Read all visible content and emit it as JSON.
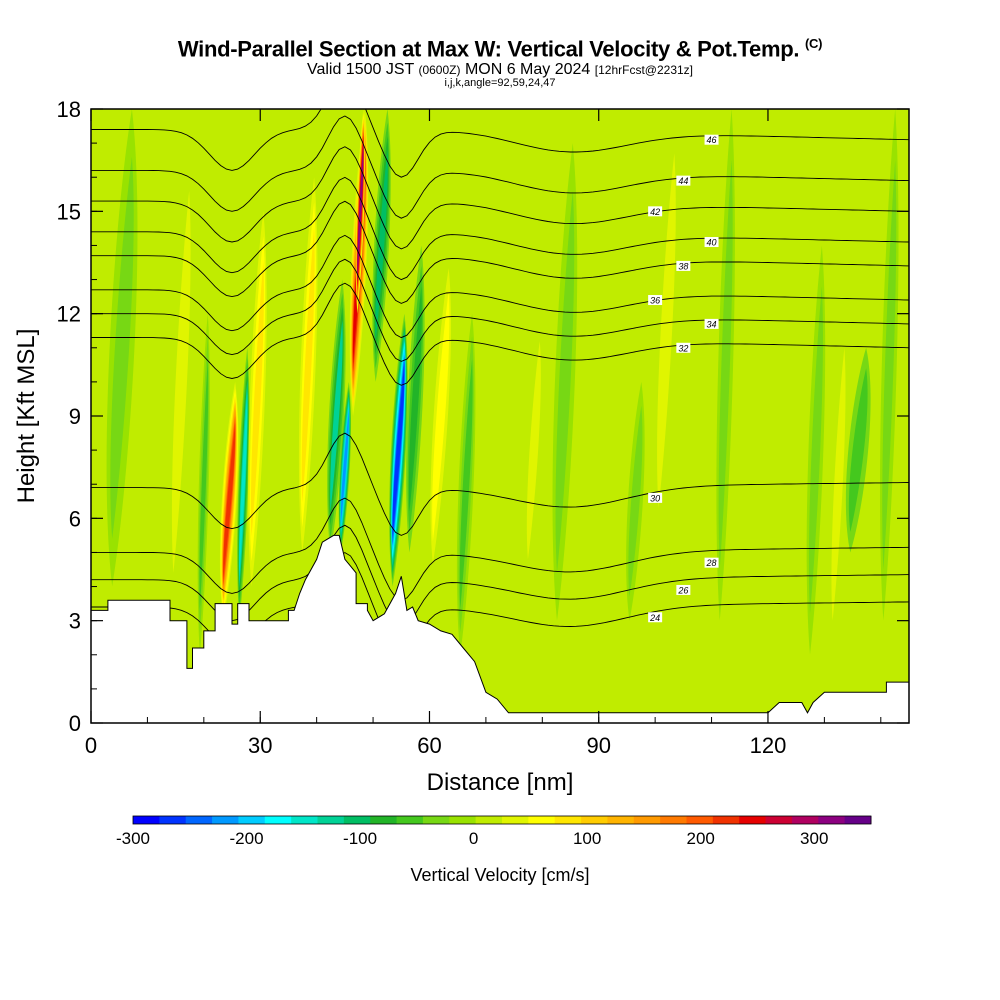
{
  "title": {
    "main": "Wind-Parallel Section at Max W: Vertical Velocity & Pot.Temp.",
    "copyright": "(C)",
    "valid": "Valid 1500 JST",
    "valid_z": "(0600Z)",
    "date": "MON 6 May 2024",
    "forecast": "[12hrFcst@2231z]",
    "indices": "i,j,k,angle=92,59,24,47"
  },
  "chart_data": {
    "type": "heatmap",
    "xlabel": "Distance [nm]",
    "ylabel": "Height [Kft MSL]",
    "xlim": [
      0,
      145
    ],
    "ylim": [
      0,
      18
    ],
    "xticks": [
      0,
      30,
      60,
      90,
      120
    ],
    "yticks": [
      0,
      3,
      6,
      9,
      12,
      15,
      18
    ],
    "colorbar": {
      "label": "Vertical Velocity [cm/s]",
      "ticks": [
        -300,
        -200,
        -100,
        0,
        100,
        200,
        300
      ],
      "range": [
        -300,
        350
      ],
      "colors": [
        "#0000ff",
        "#0033ff",
        "#0066ff",
        "#0099ff",
        "#00ccff",
        "#00ffff",
        "#00e6c8",
        "#00d296",
        "#00be64",
        "#22b428",
        "#44c81e",
        "#77d814",
        "#99e200",
        "#c0ec00",
        "#e0f500",
        "#ffff00",
        "#ffe600",
        "#ffcc00",
        "#ffb400",
        "#ff9a00",
        "#ff7a00",
        "#ff5a00",
        "#f03200",
        "#e60000",
        "#cc0033",
        "#b00060",
        "#8c0080",
        "#660088"
      ]
    },
    "vertical_velocity_cells": [
      {
        "x": [
          3,
          8
        ],
        "y": [
          4,
          18
        ],
        "w": -40
      },
      {
        "x": [
          14,
          18
        ],
        "y": [
          3,
          17
        ],
        "w": 45
      },
      {
        "x": [
          19,
          21
        ],
        "y": [
          2,
          12
        ],
        "w": -60
      },
      {
        "x": [
          23,
          26
        ],
        "y": [
          3,
          10
        ],
        "w": 220
      },
      {
        "x": [
          26,
          28
        ],
        "y": [
          3,
          11
        ],
        "w": -150
      },
      {
        "x": [
          28,
          31
        ],
        "y": [
          4,
          15
        ],
        "w": 90
      },
      {
        "x": [
          37,
          40
        ],
        "y": [
          5,
          16
        ],
        "w": 80
      },
      {
        "x": [
          42,
          45
        ],
        "y": [
          5,
          13
        ],
        "w": -120
      },
      {
        "x": [
          44,
          46
        ],
        "y": [
          5,
          10
        ],
        "w": -220
      },
      {
        "x": [
          46,
          49
        ],
        "y": [
          9,
          18
        ],
        "w": 250
      },
      {
        "x": [
          47,
          48.5
        ],
        "y": [
          12,
          18
        ],
        "w": 320
      },
      {
        "x": [
          50,
          53
        ],
        "y": [
          10,
          18
        ],
        "w": -110
      },
      {
        "x": [
          53,
          56
        ],
        "y": [
          4,
          12
        ],
        "w": -270
      },
      {
        "x": [
          56,
          59
        ],
        "y": [
          5,
          14
        ],
        "w": -80
      },
      {
        "x": [
          60,
          64
        ],
        "y": [
          4,
          14
        ],
        "w": 70
      },
      {
        "x": [
          65,
          68
        ],
        "y": [
          2,
          12
        ],
        "w": -60
      },
      {
        "x": [
          77,
          80
        ],
        "y": [
          4,
          12
        ],
        "w": 25
      },
      {
        "x": [
          82,
          86
        ],
        "y": [
          3,
          17
        ],
        "w": -30
      },
      {
        "x": [
          95,
          98
        ],
        "y": [
          3,
          10
        ],
        "w": -35
      },
      {
        "x": [
          100,
          104
        ],
        "y": [
          5,
          18
        ],
        "w": 25
      },
      {
        "x": [
          111,
          114
        ],
        "y": [
          3,
          18
        ],
        "w": -35
      },
      {
        "x": [
          127,
          130
        ],
        "y": [
          2,
          14
        ],
        "w": -40
      },
      {
        "x": [
          131,
          134
        ],
        "y": [
          2,
          12
        ],
        "w": 45
      },
      {
        "x": [
          134,
          138
        ],
        "y": [
          5,
          11
        ],
        "w": -50
      },
      {
        "x": [
          140,
          143
        ],
        "y": [
          3,
          18
        ],
        "w": -30
      }
    ],
    "theta_contours": [
      {
        "label": "24",
        "base": 3.4
      },
      {
        "label": "26",
        "base": 4.2
      },
      {
        "label": "28",
        "base": 5.0
      },
      {
        "label": "30",
        "base": 6.9
      },
      {
        "label": "32",
        "base": 11.3
      },
      {
        "label": "34",
        "base": 12.0
      },
      {
        "label": "36",
        "base": 12.7
      },
      {
        "label": "38",
        "base": 13.7
      },
      {
        "label": "40",
        "base": 14.4
      },
      {
        "label": "42",
        "base": 15.3
      },
      {
        "label": "44",
        "base": 16.2
      },
      {
        "label": "46",
        "base": 17.4
      }
    ],
    "terrain": [
      [
        0,
        3.3
      ],
      [
        3,
        3.3
      ],
      [
        3,
        3.6
      ],
      [
        14,
        3.6
      ],
      [
        14,
        3.0
      ],
      [
        17,
        3.0
      ],
      [
        17,
        1.6
      ],
      [
        18,
        1.6
      ],
      [
        18,
        2.2
      ],
      [
        20,
        2.2
      ],
      [
        20,
        2.7
      ],
      [
        22,
        2.7
      ],
      [
        22,
        3.5
      ],
      [
        25,
        3.5
      ],
      [
        25,
        2.9
      ],
      [
        26,
        2.9
      ],
      [
        26,
        3.5
      ],
      [
        28,
        3.5
      ],
      [
        28,
        3.0
      ],
      [
        35,
        3.0
      ],
      [
        35,
        3.3
      ],
      [
        36,
        3.3
      ],
      [
        37,
        3.8
      ],
      [
        38,
        4.2
      ],
      [
        40,
        4.8
      ],
      [
        41,
        5.3
      ],
      [
        43,
        5.5
      ],
      [
        44,
        5.5
      ],
      [
        45,
        4.8
      ],
      [
        46,
        4.6
      ],
      [
        47,
        4.4
      ],
      [
        47,
        3.5
      ],
      [
        49,
        3.5
      ],
      [
        49,
        3.3
      ],
      [
        50,
        3.0
      ],
      [
        52,
        3.2
      ],
      [
        54,
        3.8
      ],
      [
        55,
        4.3
      ],
      [
        56,
        3.3
      ],
      [
        57,
        3.4
      ],
      [
        58,
        3.0
      ],
      [
        60,
        2.9
      ],
      [
        62,
        2.7
      ],
      [
        64,
        2.6
      ],
      [
        66,
        2.2
      ],
      [
        68,
        1.8
      ],
      [
        70,
        0.9
      ],
      [
        72,
        0.7
      ],
      [
        74,
        0.3
      ],
      [
        120,
        0.3
      ],
      [
        122,
        0.6
      ],
      [
        126,
        0.6
      ],
      [
        127,
        0.3
      ],
      [
        128,
        0.6
      ],
      [
        130,
        0.9
      ],
      [
        141,
        0.9
      ],
      [
        141,
        1.2
      ],
      [
        145,
        1.2
      ]
    ]
  }
}
